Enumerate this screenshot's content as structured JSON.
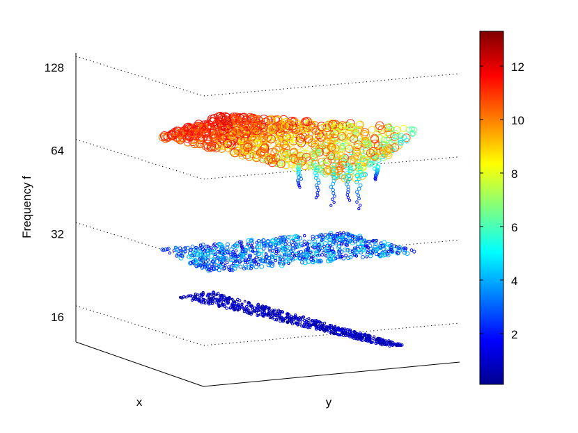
{
  "chart_data": {
    "type": "scatter",
    "subtype": "3d-scatter",
    "title": "",
    "xlabel": "x",
    "ylabel": "y",
    "zlabel": "Frequency f",
    "z_scale": "log2",
    "z_ticks": [
      16,
      32,
      64,
      128
    ],
    "z_tick_labels": [
      "16",
      "32",
      "64",
      "128"
    ],
    "z_range": [
      11,
      140
    ],
    "grid": "on",
    "legend": "none",
    "colorbar": {
      "colormap": "jet",
      "range": [
        0.1,
        13.3
      ],
      "ticks": [
        2,
        4,
        6,
        8,
        10,
        12
      ],
      "tick_labels": [
        "2",
        "4",
        "6",
        "8",
        "10",
        "12"
      ],
      "placement": "right"
    },
    "marker": "circle",
    "marker_size_encodes": "color value",
    "series": [
      {
        "frequency": 16,
        "color_value_range": [
          0.2,
          1.6
        ],
        "typical_color_value": 0.9
      },
      {
        "frequency": 29,
        "color_value_range": [
          1.2,
          5.5
        ],
        "typical_color_value": 2.8
      },
      {
        "frequency": 64,
        "color_value_range": [
          3,
          13
        ],
        "typical_color_value": 11
      }
    ]
  }
}
